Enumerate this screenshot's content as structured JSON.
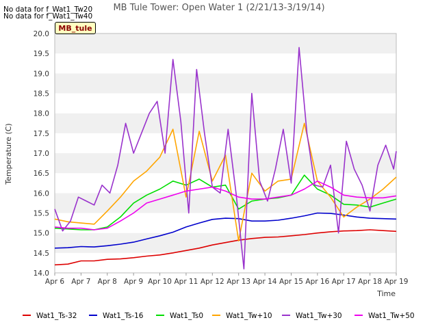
{
  "no_data_messages": [
    "No data for f_Wat1_Tw20",
    "No data for f_Wat1_Tw40"
  ],
  "site_badge": "MB_tule",
  "chart_data": {
    "type": "line",
    "title": "MB Tule Tower: Open Water 1 (2/21/13-3/19/14)",
    "xlabel": "Time",
    "ylabel": "Temperature (C)",
    "x_tick_labels": [
      "Apr 6",
      "Apr 7",
      "Apr 8",
      "Apr 9",
      "Apr 10",
      "Apr 11",
      "Apr 12",
      "Apr 13",
      "Apr 14",
      "Apr 15",
      "Apr 16",
      "Apr 17",
      "Apr 18",
      "Apr 19"
    ],
    "x_unit": "days since Apr 6",
    "xlim": [
      0,
      13
    ],
    "ylim": [
      14.0,
      20.0
    ],
    "y_ticks": [
      14.0,
      14.5,
      15.0,
      15.5,
      16.0,
      16.5,
      17.0,
      17.5,
      18.0,
      18.5,
      19.0,
      19.5,
      20.0
    ],
    "grid": "alternating horizontal bands",
    "legend_position": "bottom",
    "series": [
      {
        "name": "Wat1_Ts-32",
        "color": "#dd0000",
        "x": [
          0,
          0.5,
          1,
          1.5,
          2,
          2.5,
          3,
          3.5,
          4,
          4.5,
          5,
          5.5,
          6,
          6.5,
          7,
          7.5,
          8,
          8.5,
          9,
          9.5,
          10,
          10.5,
          11,
          11.5,
          12,
          12.5,
          13
        ],
        "y": [
          14.2,
          14.22,
          14.3,
          14.3,
          14.34,
          14.35,
          14.38,
          14.42,
          14.45,
          14.5,
          14.56,
          14.62,
          14.7,
          14.76,
          14.82,
          14.86,
          14.89,
          14.9,
          14.93,
          14.96,
          15.0,
          15.03,
          15.05,
          15.06,
          15.08,
          15.06,
          15.04
        ]
      },
      {
        "name": "Wat1_Ts-16",
        "color": "#0000cc",
        "x": [
          0,
          0.5,
          1,
          1.5,
          2,
          2.5,
          3,
          3.5,
          4,
          4.5,
          5,
          5.5,
          6,
          6.5,
          7,
          7.5,
          8,
          8.5,
          9,
          9.5,
          10,
          10.5,
          11,
          11.5,
          12,
          12.5,
          13
        ],
        "y": [
          14.62,
          14.63,
          14.66,
          14.65,
          14.68,
          14.72,
          14.77,
          14.85,
          14.93,
          15.02,
          15.15,
          15.25,
          15.34,
          15.37,
          15.36,
          15.3,
          15.3,
          15.32,
          15.37,
          15.43,
          15.5,
          15.49,
          15.45,
          15.4,
          15.37,
          15.36,
          15.35
        ]
      },
      {
        "name": "Wat1_Ts0",
        "color": "#00dd00",
        "x": [
          0,
          0.5,
          1,
          1.5,
          2,
          2.5,
          3,
          3.5,
          4,
          4.5,
          5,
          5.5,
          6,
          6.5,
          7,
          7.5,
          8,
          8.5,
          9,
          9.5,
          10,
          10.5,
          11,
          11.5,
          12,
          12.5,
          13
        ],
        "y": [
          15.12,
          15.1,
          15.08,
          15.08,
          15.15,
          15.4,
          15.75,
          15.95,
          16.1,
          16.3,
          16.2,
          16.35,
          16.15,
          16.2,
          15.6,
          15.8,
          15.85,
          15.88,
          15.95,
          16.45,
          16.1,
          15.95,
          15.72,
          15.7,
          15.65,
          15.75,
          15.85
        ]
      },
      {
        "name": "Wat1_Tw+10",
        "color": "#ffa500",
        "x": [
          0,
          0.5,
          1,
          1.5,
          2,
          2.5,
          3,
          3.5,
          4,
          4.5,
          5,
          5.5,
          6,
          6.5,
          7,
          7.5,
          8,
          8.5,
          9,
          9.5,
          10,
          10.5,
          11,
          11.5,
          12,
          12.5,
          13
        ],
        "y": [
          15.35,
          15.28,
          15.25,
          15.22,
          15.55,
          15.9,
          16.3,
          16.55,
          16.9,
          17.6,
          15.9,
          17.55,
          16.3,
          16.95,
          14.8,
          16.5,
          16.05,
          16.3,
          16.35,
          17.75,
          16.3,
          15.9,
          15.4,
          15.65,
          15.85,
          16.1,
          16.4
        ]
      },
      {
        "name": "Wat1_Tw+30",
        "color": "#9932cc",
        "x": [
          0,
          0.3,
          0.6,
          0.9,
          1.2,
          1.5,
          1.8,
          2.1,
          2.4,
          2.7,
          3,
          3.3,
          3.6,
          3.9,
          4.2,
          4.5,
          4.8,
          5.1,
          5.4,
          5.7,
          6,
          6.3,
          6.6,
          6.9,
          7.2,
          7.5,
          7.8,
          8.1,
          8.4,
          8.7,
          9,
          9.3,
          9.6,
          9.9,
          10.2,
          10.5,
          10.8,
          11.1,
          11.4,
          11.7,
          12,
          12.3,
          12.6,
          12.9,
          13
        ],
        "y": [
          15.6,
          15.05,
          15.3,
          15.9,
          15.8,
          15.7,
          16.2,
          16.0,
          16.7,
          17.75,
          17.0,
          17.5,
          18.0,
          18.3,
          17.0,
          19.35,
          17.8,
          15.5,
          19.1,
          17.5,
          16.15,
          16.0,
          17.6,
          16.0,
          14.1,
          18.5,
          16.3,
          15.8,
          16.6,
          17.6,
          16.25,
          19.65,
          17.5,
          16.2,
          16.15,
          16.7,
          15.0,
          17.3,
          16.6,
          16.2,
          15.55,
          16.7,
          17.2,
          16.6,
          17.05
        ]
      },
      {
        "name": "Wat1_Tw+50",
        "color": "#ee00ee",
        "x": [
          0,
          0.5,
          1,
          1.5,
          2,
          2.5,
          3,
          3.5,
          4,
          4.5,
          5,
          5.5,
          6,
          6.5,
          7,
          7.5,
          8,
          8.5,
          9,
          9.5,
          10,
          10.5,
          11,
          11.5,
          12,
          12.5,
          13
        ],
        "y": [
          15.15,
          15.12,
          15.12,
          15.08,
          15.12,
          15.3,
          15.5,
          15.75,
          15.85,
          15.95,
          16.05,
          16.1,
          16.15,
          16.05,
          15.9,
          15.85,
          15.85,
          15.9,
          15.95,
          16.1,
          16.3,
          16.15,
          15.95,
          15.9,
          15.88,
          15.88,
          15.93
        ]
      }
    ]
  }
}
